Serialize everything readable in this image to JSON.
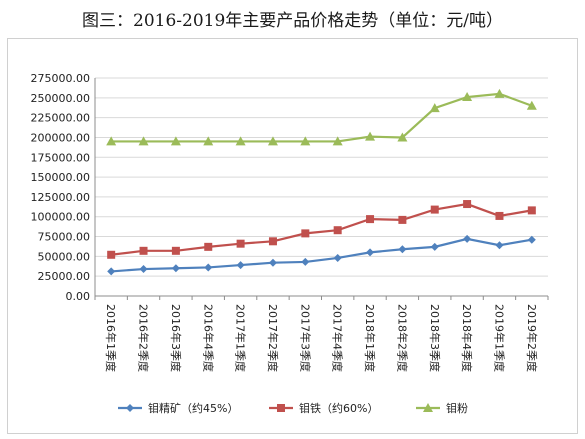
{
  "chart_data": {
    "type": "line",
    "title": "图三：2016-2019年主要产品价格走势（单位：元/吨）",
    "xlabel": "",
    "ylabel": "",
    "ylim": [
      0,
      275000
    ],
    "ytick_step": 25000,
    "y_tick_labels": [
      "0.00",
      "25000.00",
      "50000.00",
      "75000.00",
      "100000.00",
      "125000.00",
      "150000.00",
      "175000.00",
      "200000.00",
      "225000.00",
      "250000.00",
      "275000.00"
    ],
    "grid": true,
    "legend_position": "bottom",
    "categories": [
      "2016年1季度",
      "2016年2季度",
      "2016年3季度",
      "2016年4季度",
      "2017年1季度",
      "2017年2季度",
      "2017年3季度",
      "2017年4季度",
      "2018年1季度",
      "2018年2季度",
      "2018年3季度",
      "2018年4季度",
      "2019年1季度",
      "2019年2季度"
    ],
    "series": [
      {
        "name": "钼精矿（约45%）",
        "color": "#4F81BD",
        "marker": "diamond",
        "values": [
          31000,
          34000,
          35000,
          36000,
          39000,
          42000,
          43000,
          48000,
          55000,
          59000,
          62000,
          72000,
          64000,
          71000
        ]
      },
      {
        "name": "钼铁（约60%）",
        "color": "#C0504D",
        "marker": "square",
        "values": [
          52000,
          57000,
          57000,
          62000,
          66000,
          69000,
          79000,
          83000,
          97000,
          96000,
          109000,
          116000,
          101000,
          108000
        ]
      },
      {
        "name": "钼粉",
        "color": "#9BBB59",
        "marker": "triangle",
        "values": [
          195000,
          195000,
          195000,
          195000,
          195000,
          195000,
          195000,
          195000,
          201000,
          200000,
          237000,
          251000,
          255000,
          240000
        ]
      }
    ]
  }
}
